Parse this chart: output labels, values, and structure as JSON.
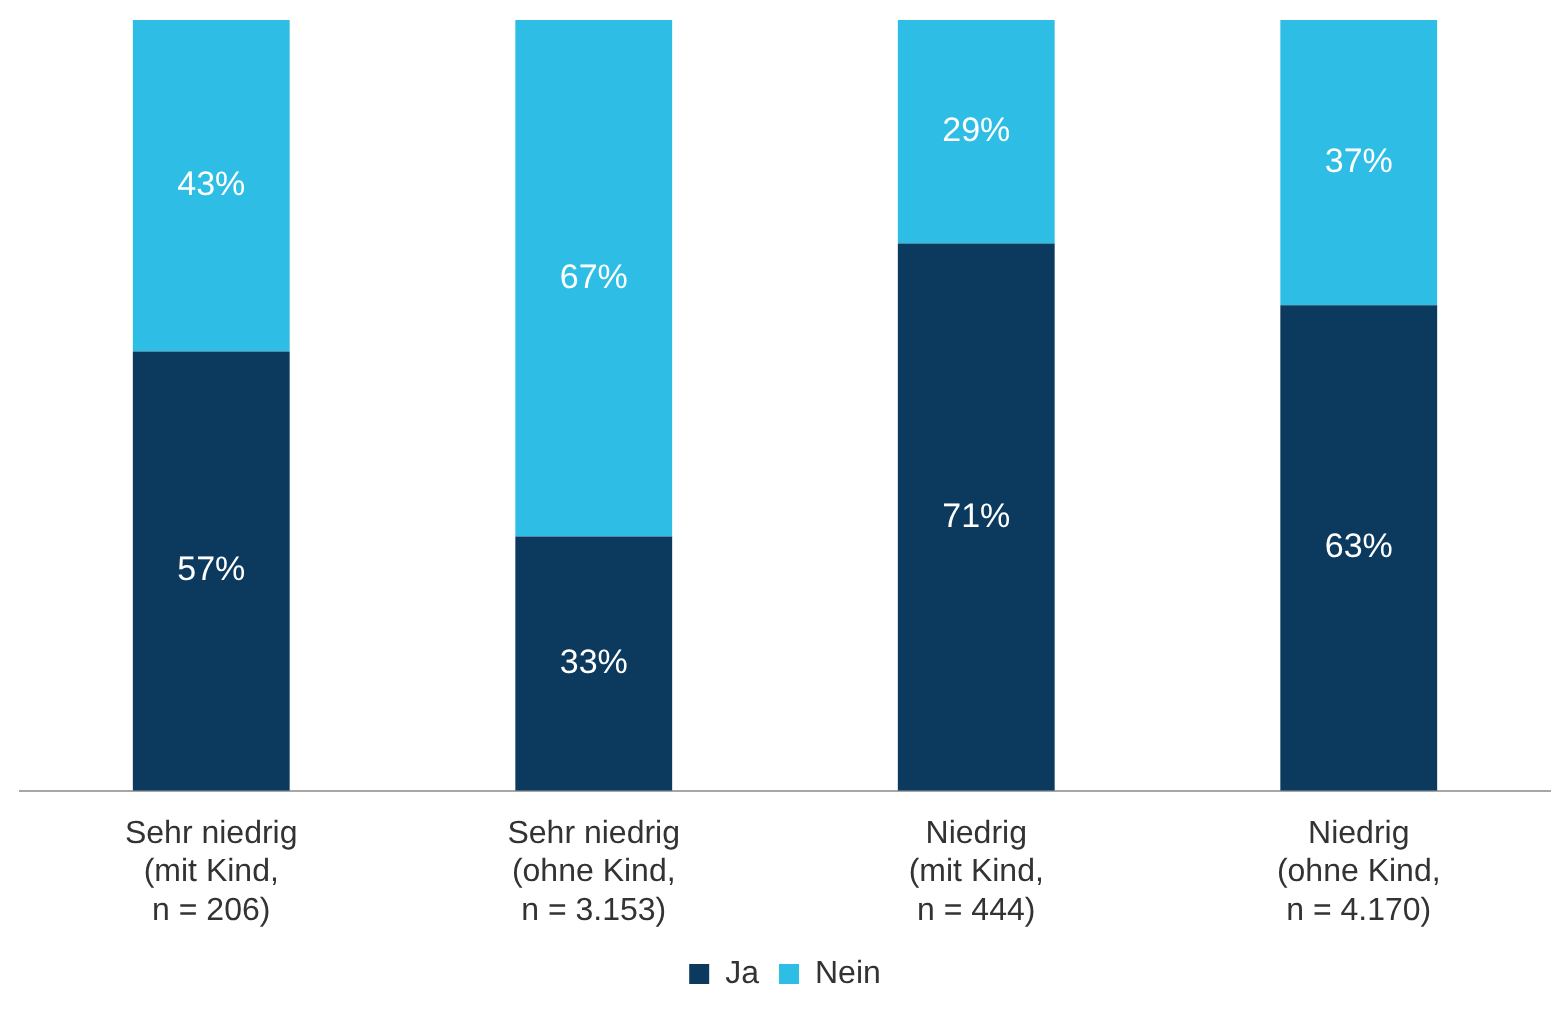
{
  "chart_data": {
    "type": "bar",
    "stacked": true,
    "categories": [
      "Sehr niedrig\n(mit Kind,\nn = 206)",
      "Sehr niedrig\n(ohne Kind,\nn = 3.153)",
      "Niedrig\n(mit Kind,\nn = 444)",
      "Niedrig\n(ohne Kind,\nn = 4.170)"
    ],
    "ylim": [
      0,
      100
    ],
    "grid": false,
    "legend": "bottom",
    "tick_labels": "x",
    "series": [
      {
        "name": "Ja",
        "color": "#0b3a5e",
        "values": [
          57,
          33,
          71,
          63
        ],
        "value_labels": [
          "57%",
          "33%",
          "71%",
          "63%"
        ]
      },
      {
        "name": "Nein",
        "color": "#2ebde4",
        "values": [
          43,
          67,
          29,
          37
        ],
        "value_labels": [
          "43%",
          "67%",
          "29%",
          "37%"
        ]
      }
    ]
  }
}
